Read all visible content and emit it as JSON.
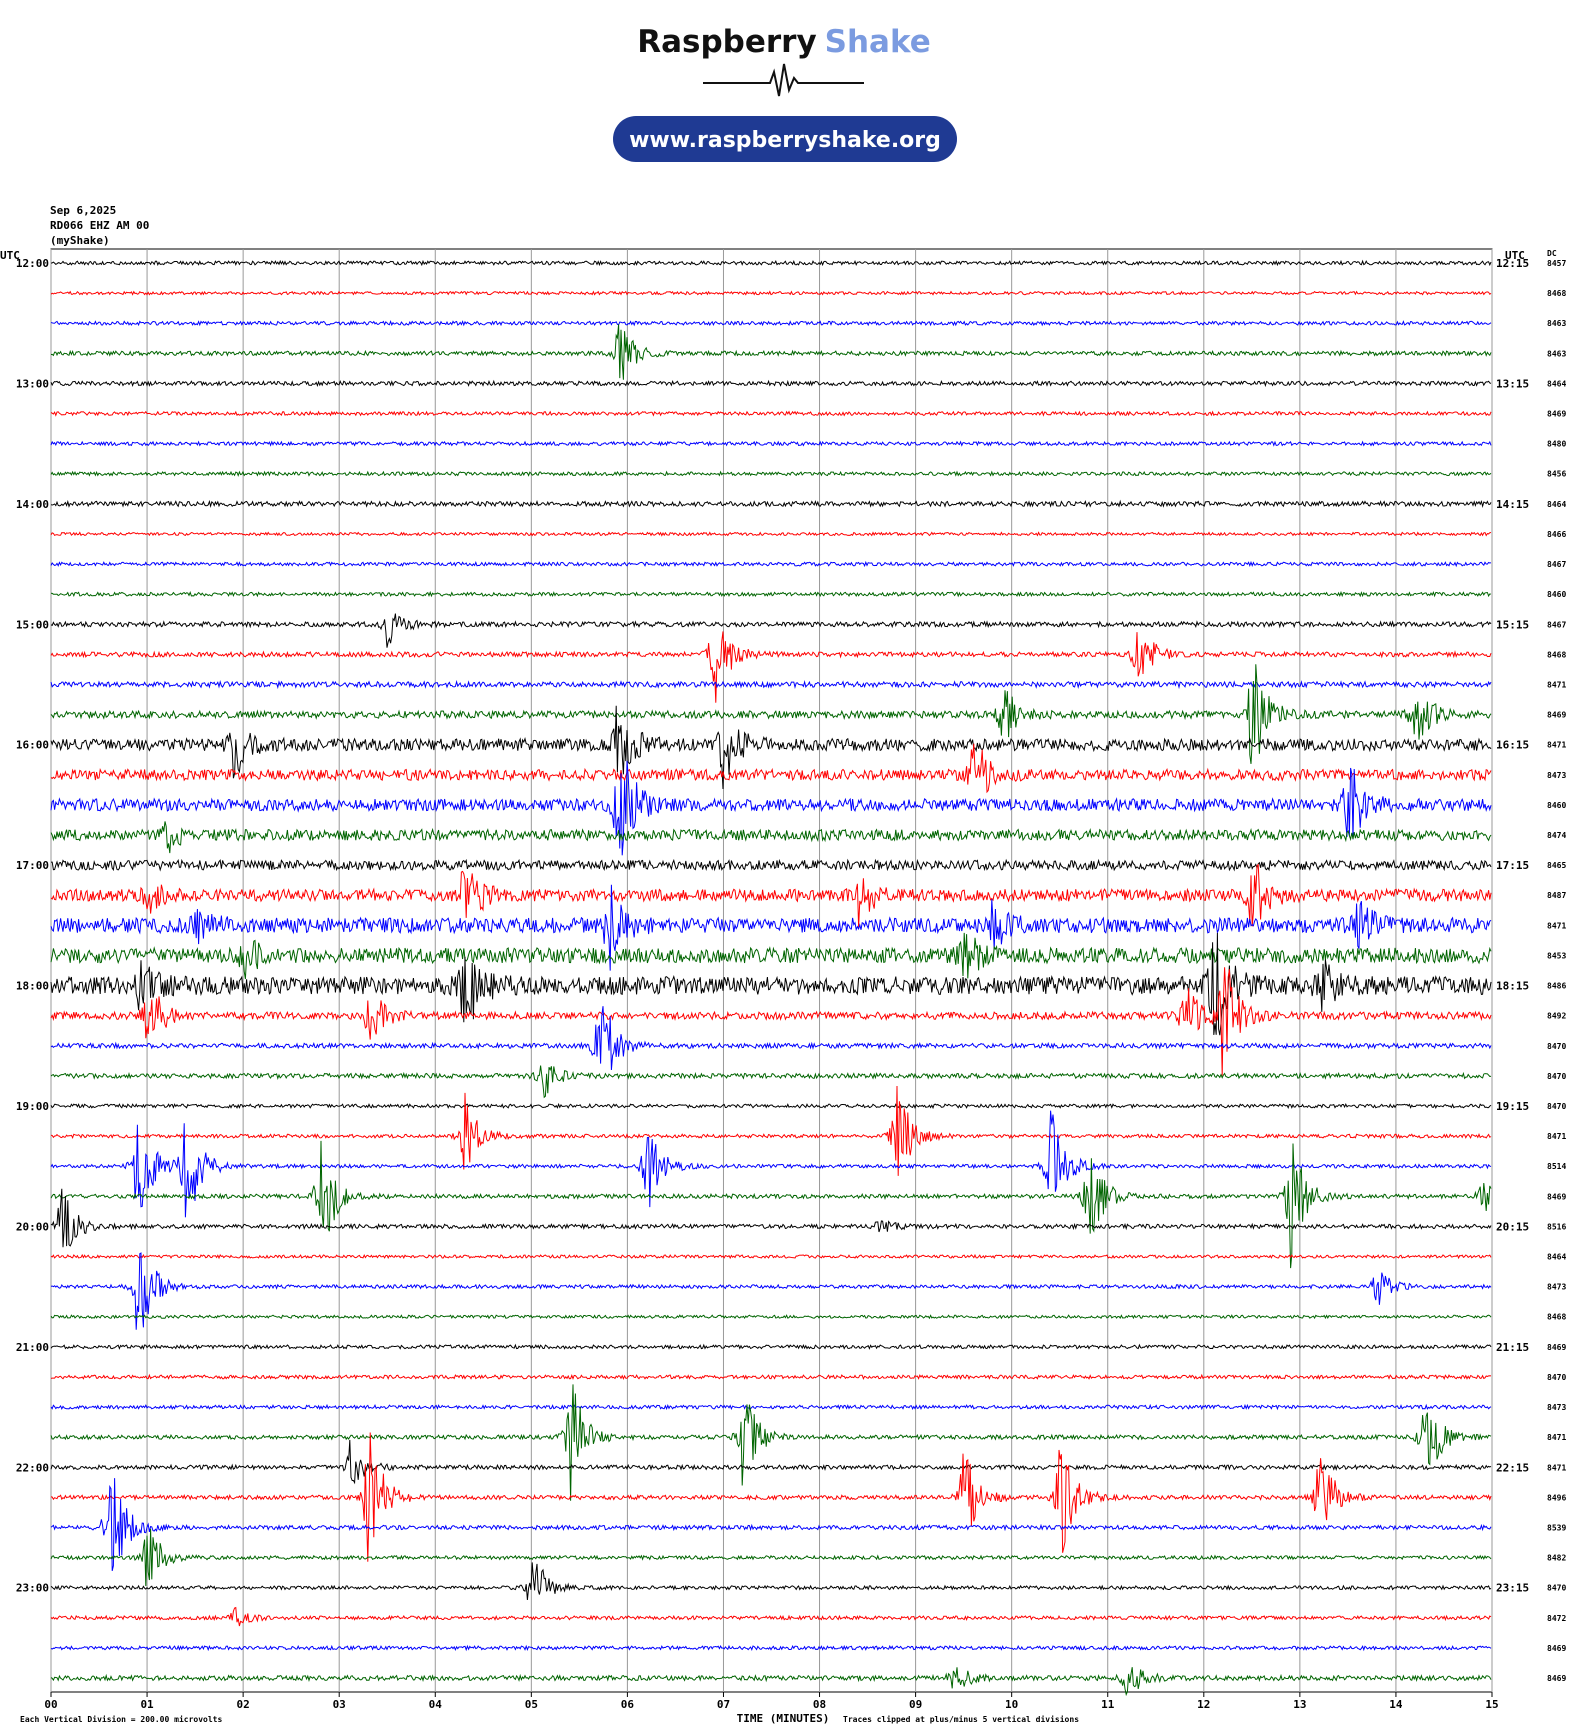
{
  "header": {
    "brand": [
      "Raspberry",
      "Shake"
    ],
    "url": "www.raspberryshake.org"
  },
  "chart_data": {
    "type": "helicorder",
    "date": "Sep 6,2025",
    "station": "RD066 EHZ AM 00",
    "source": "(myShake)",
    "left_axis_title": "UTC",
    "right_axis_title": "UTC",
    "dc_title": "DC",
    "hours_left": [
      "12:00",
      "13:00",
      "14:00",
      "15:00",
      "16:00",
      "17:00",
      "18:00",
      "19:00",
      "20:00",
      "21:00",
      "22:00",
      "23:00"
    ],
    "hours_right": [
      "12:15",
      "13:15",
      "14:15",
      "15:15",
      "16:15",
      "17:15",
      "18:15",
      "19:15",
      "20:15",
      "21:15",
      "22:15",
      "23:15"
    ],
    "dc": [
      8457,
      8468,
      8463,
      8463,
      8464,
      8469,
      8480,
      8456,
      8464,
      8466,
      8467,
      8460,
      8467,
      8468,
      8471,
      8469,
      8471,
      8473,
      8460,
      8474,
      8465,
      8487,
      8471,
      8453,
      8486,
      8492,
      8470,
      8470,
      8470,
      8471,
      8514,
      8469,
      8516,
      8464,
      8473,
      8468,
      8469,
      8470,
      8473,
      8471,
      8471,
      8496,
      8539,
      8482,
      8470,
      8472,
      8469,
      8469
    ],
    "colors": [
      "#000000",
      "#ff0000",
      "#0000ff",
      "#006400"
    ],
    "noise": [
      0.06,
      0.05,
      0.06,
      0.07,
      0.07,
      0.06,
      0.06,
      0.06,
      0.08,
      0.05,
      0.06,
      0.06,
      0.08,
      0.08,
      0.09,
      0.12,
      0.2,
      0.18,
      0.2,
      0.18,
      0.16,
      0.2,
      0.25,
      0.25,
      0.3,
      0.12,
      0.08,
      0.08,
      0.06,
      0.06,
      0.06,
      0.07,
      0.07,
      0.05,
      0.06,
      0.05,
      0.06,
      0.06,
      0.06,
      0.07,
      0.07,
      0.07,
      0.07,
      0.06,
      0.06,
      0.06,
      0.06,
      0.08
    ],
    "events": [
      {
        "row": 3,
        "minute": 5.9,
        "amplitude": 1.5
      },
      {
        "row": 12,
        "minute": 3.5,
        "amplitude": 0.8
      },
      {
        "row": 13,
        "minute": 6.9,
        "amplitude": 2
      },
      {
        "row": 13,
        "minute": 11.3,
        "amplitude": 1.5
      },
      {
        "row": 15,
        "minute": 9.9,
        "amplitude": 1.2
      },
      {
        "row": 15,
        "minute": 12.5,
        "amplitude": 2.5
      },
      {
        "row": 15,
        "minute": 14.2,
        "amplitude": 1.5
      },
      {
        "row": 16,
        "minute": 1.9,
        "amplitude": 1.2
      },
      {
        "row": 16,
        "minute": 5.9,
        "amplitude": 2
      },
      {
        "row": 16,
        "minute": 7.0,
        "amplitude": 1.5
      },
      {
        "row": 17,
        "minute": 9.6,
        "amplitude": 1.5
      },
      {
        "row": 18,
        "minute": 5.9,
        "amplitude": 3
      },
      {
        "row": 18,
        "minute": 13.5,
        "amplitude": 1.8
      },
      {
        "row": 19,
        "minute": 1.2,
        "amplitude": 0.6
      },
      {
        "row": 21,
        "minute": 1.0,
        "amplitude": 0.6
      },
      {
        "row": 21,
        "minute": 4.3,
        "amplitude": 1.5
      },
      {
        "row": 21,
        "minute": 8.4,
        "amplitude": 1
      },
      {
        "row": 21,
        "minute": 12.5,
        "amplitude": 1.5
      },
      {
        "row": 22,
        "minute": 1.5,
        "amplitude": 0.8
      },
      {
        "row": 22,
        "minute": 5.8,
        "amplitude": 1.5
      },
      {
        "row": 22,
        "minute": 9.8,
        "amplitude": 1
      },
      {
        "row": 22,
        "minute": 13.6,
        "amplitude": 1
      },
      {
        "row": 23,
        "minute": 2,
        "amplitude": 0.7
      },
      {
        "row": 23,
        "minute": 9.5,
        "amplitude": 1
      },
      {
        "row": 24,
        "minute": 0.9,
        "amplitude": 1
      },
      {
        "row": 24,
        "minute": 4.3,
        "amplitude": 2.2
      },
      {
        "row": 24,
        "minute": 12.1,
        "amplitude": 2.5
      },
      {
        "row": 24,
        "minute": 13.2,
        "amplitude": 1
      },
      {
        "row": 25,
        "minute": 1.0,
        "amplitude": 1.5
      },
      {
        "row": 25,
        "minute": 3.3,
        "amplitude": 1.2
      },
      {
        "row": 25,
        "minute": 11.8,
        "amplitude": 1.5
      },
      {
        "row": 25,
        "minute": 12.2,
        "amplitude": 2.5
      },
      {
        "row": 26,
        "minute": 5.7,
        "amplitude": 2.5
      },
      {
        "row": 27,
        "minute": 5.1,
        "amplitude": 1
      },
      {
        "row": 29,
        "minute": 4.3,
        "amplitude": 1.5
      },
      {
        "row": 29,
        "minute": 8.8,
        "amplitude": 2
      },
      {
        "row": 30,
        "minute": 0.9,
        "amplitude": 2.5
      },
      {
        "row": 30,
        "minute": 1.4,
        "amplitude": 2.5
      },
      {
        "row": 30,
        "minute": 6.2,
        "amplitude": 1.8
      },
      {
        "row": 30,
        "minute": 10.4,
        "amplitude": 2.5
      },
      {
        "row": 31,
        "minute": 2.8,
        "amplitude": 2.5
      },
      {
        "row": 31,
        "minute": 10.8,
        "amplitude": 2
      },
      {
        "row": 31,
        "minute": 12.9,
        "amplitude": 2.5
      },
      {
        "row": 31,
        "minute": 14.9,
        "amplitude": 0.6
      },
      {
        "row": 32,
        "minute": 0.1,
        "amplitude": 1.5
      },
      {
        "row": 32,
        "minute": 8.6,
        "amplitude": 0.3
      },
      {
        "row": 34,
        "minute": 0.9,
        "amplitude": 2.5
      },
      {
        "row": 34,
        "minute": 13.8,
        "amplitude": 0.8
      },
      {
        "row": 39,
        "minute": 5.4,
        "amplitude": 2.5
      },
      {
        "row": 39,
        "minute": 7.2,
        "amplitude": 2
      },
      {
        "row": 39,
        "minute": 14.3,
        "amplitude": 2
      },
      {
        "row": 40,
        "minute": 3.1,
        "amplitude": 1
      },
      {
        "row": 41,
        "minute": 3.3,
        "amplitude": 3
      },
      {
        "row": 41,
        "minute": 9.5,
        "amplitude": 2
      },
      {
        "row": 41,
        "minute": 10.5,
        "amplitude": 2.5
      },
      {
        "row": 41,
        "minute": 13.2,
        "amplitude": 2
      },
      {
        "row": 42,
        "minute": 0.6,
        "amplitude": 3
      },
      {
        "row": 43,
        "minute": 1.0,
        "amplitude": 1.5
      },
      {
        "row": 44,
        "minute": 5.0,
        "amplitude": 1.5
      },
      {
        "row": 45,
        "minute": 1.9,
        "amplitude": 0.4
      },
      {
        "row": 47,
        "minute": 9.4,
        "amplitude": 0.6
      },
      {
        "row": 47,
        "minute": 11.2,
        "amplitude": 0.8
      }
    ],
    "clip": 5,
    "xlim": [
      0,
      15
    ],
    "xticks": [
      {
        "value": 0,
        "label": "00"
      },
      {
        "value": 1,
        "label": "01"
      },
      {
        "value": 2,
        "label": "02"
      },
      {
        "value": 3,
        "label": "03"
      },
      {
        "value": 4,
        "label": "04"
      },
      {
        "value": 5,
        "label": "05"
      },
      {
        "value": 6,
        "label": "06"
      },
      {
        "value": 7,
        "label": "07"
      },
      {
        "value": 8,
        "label": "08"
      },
      {
        "value": 9,
        "label": "09"
      },
      {
        "value": 10,
        "label": "10"
      },
      {
        "value": 11,
        "label": "11"
      },
      {
        "value": 12,
        "label": "12"
      },
      {
        "value": 13,
        "label": "13"
      },
      {
        "value": 14,
        "label": "14"
      },
      {
        "value": 15,
        "label": "15"
      }
    ],
    "xlabel": "TIME (MINUTES)",
    "scale_note": "Each Vertical Division =  200.00 microvolts",
    "clip_note": "Traces clipped at plus/minus 5 vertical divisions"
  }
}
